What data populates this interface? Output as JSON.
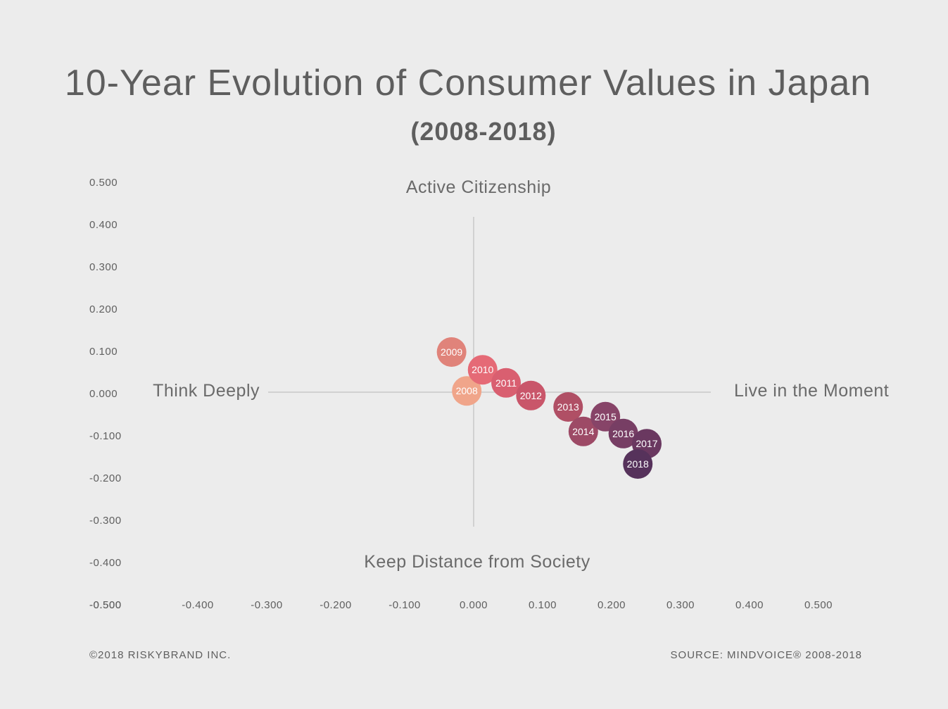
{
  "chart_data": {
    "type": "scatter",
    "title": "10-Year Evolution of Consumer Values in Japan",
    "subtitle": "(2008-2018)",
    "xlim": [
      -0.5,
      0.5
    ],
    "ylim": [
      -0.5,
      0.5
    ],
    "x_ticks": [
      "-0.500",
      "-0.400",
      "-0.300",
      "-0.200",
      "-0.100",
      "0.000",
      "0.100",
      "0.200",
      "0.300",
      "0.400",
      "0.500"
    ],
    "y_ticks": [
      "0.500",
      "0.400",
      "0.300",
      "0.200",
      "0.100",
      "0.000",
      "-0.100",
      "-0.200",
      "-0.300",
      "-0.400",
      "-0.500"
    ],
    "quadrant_labels": {
      "top": "Active Citizenship",
      "bottom": "Keep Distance from Society",
      "left": "Think Deeply",
      "right": "Live in the Moment"
    },
    "points": [
      {
        "label": "2008",
        "x": -0.01,
        "y": 0.003,
        "color": "#f0a58a"
      },
      {
        "label": "2009",
        "x": -0.032,
        "y": 0.095,
        "color": "#e0837a"
      },
      {
        "label": "2010",
        "x": 0.013,
        "y": 0.053,
        "color": "#e56a76"
      },
      {
        "label": "2011",
        "x": 0.047,
        "y": 0.022,
        "color": "#d95f70"
      },
      {
        "label": "2012",
        "x": 0.083,
        "y": -0.008,
        "color": "#c9566a"
      },
      {
        "label": "2013",
        "x": 0.137,
        "y": -0.035,
        "color": "#b04f65"
      },
      {
        "label": "2014",
        "x": 0.159,
        "y": -0.093,
        "color": "#9d4a66"
      },
      {
        "label": "2015",
        "x": 0.191,
        "y": -0.058,
        "color": "#874468"
      },
      {
        "label": "2016",
        "x": 0.217,
        "y": -0.098,
        "color": "#773e64"
      },
      {
        "label": "2017",
        "x": 0.251,
        "y": -0.122,
        "color": "#6a3860"
      },
      {
        "label": "2018",
        "x": 0.238,
        "y": -0.17,
        "color": "#56325b"
      }
    ]
  },
  "footer": {
    "copyright": "©2018 RISKYBRAND INC.",
    "source": "SOURCE: MINDVOICE® 2008-2018"
  }
}
